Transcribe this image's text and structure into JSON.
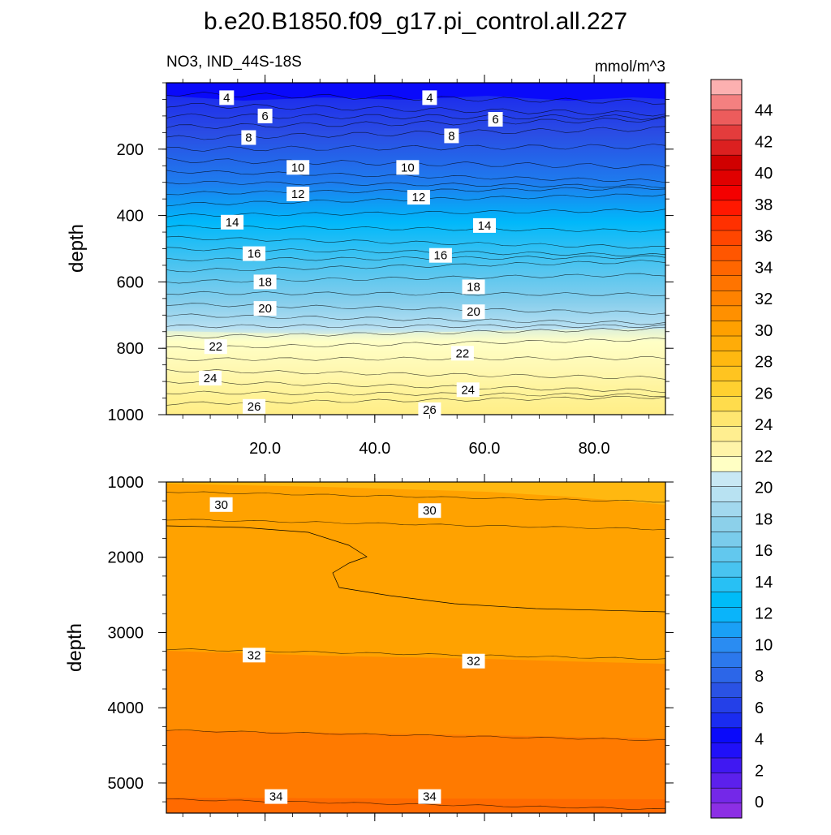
{
  "chart_data": {
    "type": "contour",
    "title": "b.e20.B1850.f09_g17.pi_control.all.227",
    "variable_label": "NO3, IND_44S-18S",
    "units_label": "mmol/m^3",
    "x_axis": {
      "range": [
        2,
        93
      ],
      "tick_labels": [
        "20.0",
        "40.0",
        "60.0",
        "80.0"
      ],
      "tick_values": [
        20,
        40,
        60,
        80
      ]
    },
    "colorbar": {
      "levels": [
        0,
        2,
        4,
        6,
        8,
        10,
        12,
        14,
        16,
        18,
        20,
        22,
        24,
        26,
        28,
        30,
        32,
        34,
        36,
        38,
        40,
        42,
        44
      ],
      "tick_labels": [
        "0",
        "2",
        "4",
        "6",
        "8",
        "10",
        "12",
        "14",
        "16",
        "18",
        "20",
        "22",
        "24",
        "26",
        "28",
        "30",
        "32",
        "34",
        "36",
        "38",
        "40",
        "42",
        "44"
      ],
      "colors": [
        "#8C2FE4",
        "#7428E8",
        "#5C20EC",
        "#4018F2",
        "#2010F8",
        "#0A0AFA",
        "#1A2CF0",
        "#2440E8",
        "#2A52E4",
        "#2C66E8",
        "#2C78EC",
        "#2A8CF2",
        "#1AA0F6",
        "#0AB4FA",
        "#00BCF8",
        "#28C0F4",
        "#48C4F0",
        "#62C8EE",
        "#7ACCEC",
        "#8CD0EA",
        "#A2D8EE",
        "#B8E2F2",
        "#C8E8F4",
        "#FFFFC4",
        "#FFF4A8",
        "#FFEE90",
        "#FFE670",
        "#FFDC4C",
        "#FFD030",
        "#FFC420",
        "#FFB810",
        "#FFAC08",
        "#FFA000",
        "#FF9000",
        "#FF8200",
        "#FF7400",
        "#FF6600",
        "#FF5600",
        "#FF4600",
        "#FF3000",
        "#FF1800",
        "#F40000",
        "#E00000",
        "#D00000",
        "#DC2020",
        "#E43C3C",
        "#EC5C5C",
        "#F48080",
        "#FCB0B0"
      ]
    },
    "panels": [
      {
        "name": "upper",
        "ylabel": "depth",
        "ylim": [
          0,
          1000
        ],
        "y_ticks": [
          200,
          400,
          600,
          800,
          1000
        ],
        "y_tick_labels": [
          "200",
          "400",
          "600",
          "800",
          "1000"
        ],
        "contour_labels": [
          {
            "text": "4",
            "x": 13,
            "y": 45
          },
          {
            "text": "4",
            "x": 50,
            "y": 45
          },
          {
            "text": "6",
            "x": 20,
            "y": 100
          },
          {
            "text": "6",
            "x": 62,
            "y": 110
          },
          {
            "text": "8",
            "x": 17,
            "y": 165
          },
          {
            "text": "8",
            "x": 54,
            "y": 160
          },
          {
            "text": "10",
            "x": 26,
            "y": 255
          },
          {
            "text": "10",
            "x": 46,
            "y": 255
          },
          {
            "text": "12",
            "x": 26,
            "y": 335
          },
          {
            "text": "12",
            "x": 48,
            "y": 345
          },
          {
            "text": "14",
            "x": 14,
            "y": 420
          },
          {
            "text": "14",
            "x": 60,
            "y": 430
          },
          {
            "text": "16",
            "x": 18,
            "y": 515
          },
          {
            "text": "16",
            "x": 52,
            "y": 520
          },
          {
            "text": "18",
            "x": 20,
            "y": 600
          },
          {
            "text": "18",
            "x": 58,
            "y": 615
          },
          {
            "text": "20",
            "x": 20,
            "y": 680
          },
          {
            "text": "20",
            "x": 58,
            "y": 690
          },
          {
            "text": "22",
            "x": 11,
            "y": 795
          },
          {
            "text": "22",
            "x": 56,
            "y": 815
          },
          {
            "text": "24",
            "x": 10,
            "y": 890
          },
          {
            "text": "24",
            "x": 57,
            "y": 925
          },
          {
            "text": "26",
            "x": 18,
            "y": 975
          },
          {
            "text": "26",
            "x": 50,
            "y": 985
          }
        ]
      },
      {
        "name": "lower",
        "ylabel": "depth",
        "ylim": [
          1000,
          5400
        ],
        "y_ticks": [
          1000,
          2000,
          3000,
          4000,
          5000
        ],
        "y_tick_labels": [
          "1000",
          "2000",
          "3000",
          "4000",
          "5000"
        ],
        "contour_labels": [
          {
            "text": "30",
            "x": 12,
            "y": 1300
          },
          {
            "text": "30",
            "x": 50,
            "y": 1380
          },
          {
            "text": "32",
            "x": 18,
            "y": 3300
          },
          {
            "text": "32",
            "x": 58,
            "y": 3380
          },
          {
            "text": "34",
            "x": 22,
            "y": 5180
          },
          {
            "text": "34",
            "x": 50,
            "y": 5180
          }
        ]
      }
    ]
  }
}
